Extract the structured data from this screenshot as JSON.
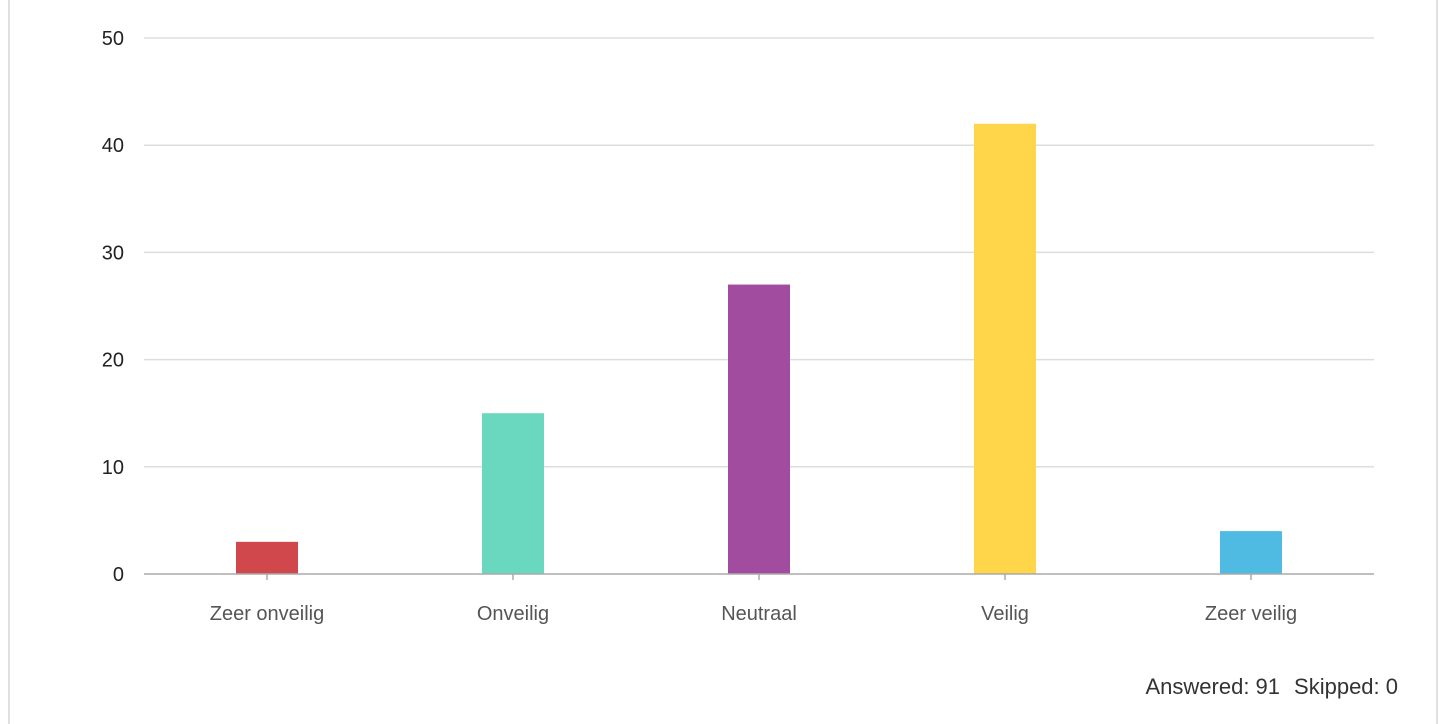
{
  "chart_data": {
    "type": "bar",
    "categories": [
      "Zeer onveilig",
      "Onveilig",
      "Neutraal",
      "Veilig",
      "Zeer veilig"
    ],
    "values": [
      3,
      15,
      27,
      42,
      4
    ],
    "colors": [
      "#d0474c",
      "#69d8be",
      "#a24c9f",
      "#ffd54a",
      "#4fbbe2"
    ],
    "ylim": [
      0,
      50
    ],
    "yticks": [
      0,
      10,
      20,
      30,
      40,
      50
    ],
    "grid": true,
    "title": "",
    "xlabel": "",
    "ylabel": ""
  },
  "footer": {
    "answered_label": "Answered: 91",
    "skipped_label": "Skipped: 0"
  }
}
